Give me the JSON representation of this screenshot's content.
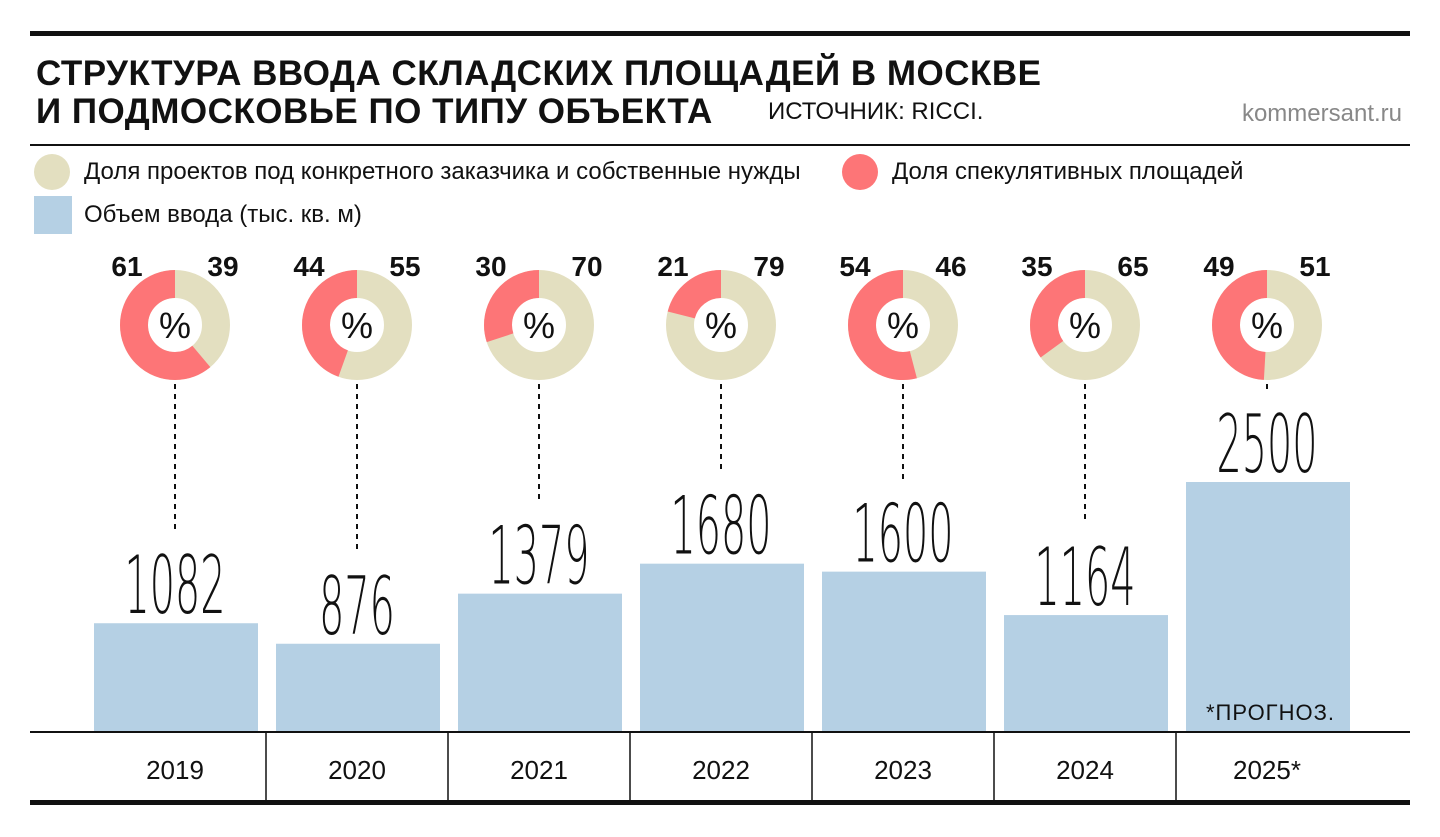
{
  "title_lines": [
    "СТРУКТУРА ВВОДА СКЛАДСКИХ ПЛОЩАДЕЙ В МОСКВЕ",
    "И ПОДМОСКОВЬЕ ПО ТИПУ ОБЪЕКТА"
  ],
  "source": "ИСТОЧНИК: RICCI.",
  "site": "kommersant.ru",
  "note": "*ПРОГНОЗ.",
  "colors": {
    "custom": "#e3dfc0",
    "speculative": "#fd7577",
    "bar": "#b5d0e4"
  },
  "chart_data": {
    "type": "bar",
    "title": "СТРУКТУРА ВВОДА СКЛАДСКИХ ПЛОЩАДЕЙ В МОСКВЕ И ПОДМОСКОВЬЕ ПО ТИПУ ОБЪЕКТА",
    "legend": [
      "Доля проектов под конкретного заказчика и собственные нужды",
      "Доля спекулятивных площадей",
      "Объем ввода (тыс. кв. м)"
    ],
    "percent_symbol": "%",
    "categories": [
      "2019",
      "2020",
      "2021",
      "2022",
      "2023",
      "2024",
      "2025*"
    ],
    "values": [
      1082,
      876,
      1379,
      1680,
      1600,
      1164,
      2500
    ],
    "speculative_share": [
      61,
      44,
      30,
      21,
      54,
      35,
      49
    ],
    "custom_share": [
      39,
      55,
      70,
      79,
      46,
      65,
      51
    ],
    "ylim": [
      0,
      2500
    ]
  }
}
